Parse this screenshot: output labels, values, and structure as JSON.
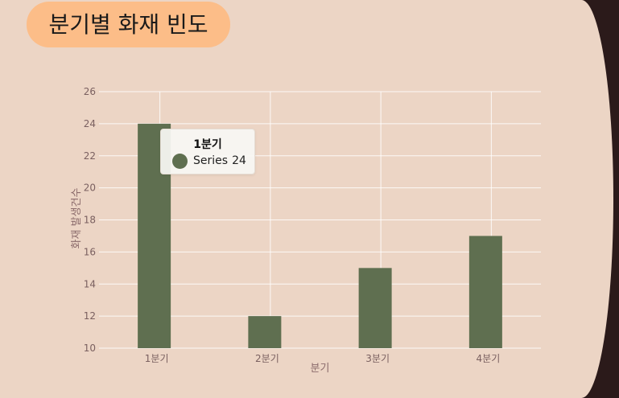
{
  "title": "분기별 화재 빈도",
  "colors": {
    "background": "#ecd5c5",
    "title_pill": "#fcbd88",
    "bar": "#5f6f50",
    "grid": "#ffffff"
  },
  "chart_data": {
    "type": "bar",
    "categories": [
      "1분기",
      "2분기",
      "3분기",
      "4분기"
    ],
    "series": [
      {
        "values": [
          24,
          12,
          15,
          17
        ]
      }
    ],
    "xlabel": "분기",
    "ylabel": "화재 발생건수",
    "ylim": [
      10,
      26
    ],
    "yticks": [
      10,
      12,
      14,
      16,
      18,
      20,
      22,
      24,
      26
    ],
    "grid": true,
    "legend": "none"
  },
  "tooltip": {
    "title": "1분기",
    "series_name": "Series",
    "value": "24"
  }
}
